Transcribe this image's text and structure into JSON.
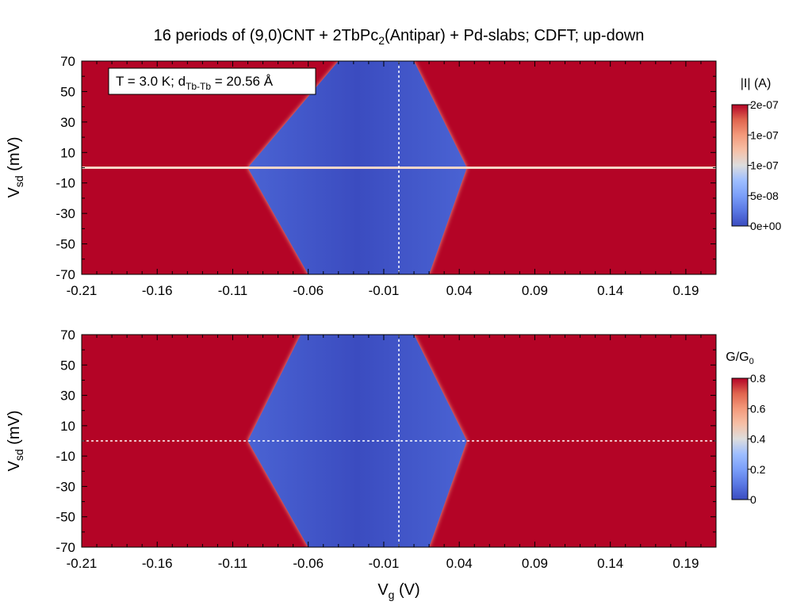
{
  "chart_data": [
    {
      "type": "heatmap",
      "title": "16 periods of (9,0)CNT + 2TbPc",
      "title_sub": "2",
      "title_rest": "(Antipar) + Pd-slabs; CDFT; up-down",
      "annotation": {
        "temp_text": "T = 3.0 K; d",
        "temp_sub": "Tb-Tb",
        "temp_rest": " = 20.56 Å"
      },
      "xlabel": "",
      "ylabel": "V",
      "ylabel_sub": "sd",
      "ylabel_rest": " (mV)",
      "xlim": [
        -0.21,
        0.21
      ],
      "ylim": [
        -70,
        70
      ],
      "x_ticks": [
        -0.21,
        -0.16,
        -0.11,
        -0.06,
        -0.01,
        0.04,
        0.09,
        0.14,
        0.19
      ],
      "x_tick_labels": [
        "-0.21",
        "-0.16",
        "-0.11",
        "-0.06",
        "-0.01",
        "0.04",
        "0.09",
        "0.14",
        "0.19"
      ],
      "y_ticks": [
        70,
        50,
        30,
        10,
        -10,
        -30,
        -50,
        -70
      ],
      "y_tick_labels": [
        "70",
        "50",
        "30",
        "10",
        "-10",
        "-30",
        "-50",
        "-70"
      ],
      "colorbar": {
        "label": "|I| (A)",
        "label_sub": "",
        "min": 0,
        "max": 2e-07,
        "ticks": [
          0,
          5e-08,
          1e-07,
          1.5e-07,
          2e-07
        ],
        "tick_labels": [
          "0e+00",
          "5e-08",
          "1e-07",
          "1e-07",
          "2e-07"
        ]
      },
      "guides": {
        "x": 0.0,
        "y": 0.0
      },
      "blockade_diamond": {
        "x_left": -0.1,
        "x_right": 0.045,
        "x_top_left": -0.04,
        "x_top_right": 0.01,
        "y_top": 70,
        "y_bottom": -70,
        "x_bottom_left": -0.06,
        "x_bottom_right": 0.02
      }
    },
    {
      "type": "heatmap",
      "xlabel": "V",
      "xlabel_sub": "g",
      "xlabel_rest": "  (V)",
      "ylabel": "V",
      "ylabel_sub": "sd",
      "ylabel_rest": " (mV)",
      "xlim": [
        -0.21,
        0.21
      ],
      "ylim": [
        -70,
        70
      ],
      "x_ticks": [
        -0.21,
        -0.16,
        -0.11,
        -0.06,
        -0.01,
        0.04,
        0.09,
        0.14,
        0.19
      ],
      "x_tick_labels": [
        "-0.21",
        "-0.16",
        "-0.11",
        "-0.06",
        "-0.01",
        "0.04",
        "0.09",
        "0.14",
        "0.19"
      ],
      "y_ticks": [
        70,
        50,
        30,
        10,
        -10,
        -30,
        -50,
        -70
      ],
      "y_tick_labels": [
        "70",
        "50",
        "30",
        "10",
        "-10",
        "-30",
        "-50",
        "-70"
      ],
      "colorbar": {
        "label": "G/G",
        "label_sub": "0",
        "min": 0,
        "max": 0.8,
        "ticks": [
          0,
          0.2,
          0.4,
          0.6,
          0.8
        ],
        "tick_labels": [
          "0",
          "0.2",
          "0.4",
          "0.6",
          "0.8"
        ]
      },
      "guides": {
        "x": 0.0,
        "y": 0.0
      },
      "blockade_diamond": {
        "x_left": -0.1,
        "x_right": 0.045,
        "x_top_left": -0.065,
        "x_top_right": 0.01,
        "y_top": 70,
        "y_bottom": -70,
        "x_bottom_left": -0.06,
        "x_bottom_right": 0.02
      }
    }
  ],
  "colors": {
    "high": "#b40426",
    "mid": "#dddddd",
    "low": "#3b4cc0"
  }
}
